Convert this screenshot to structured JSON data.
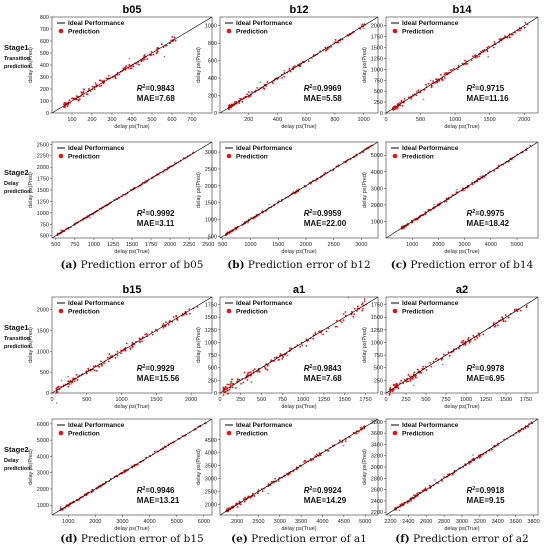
{
  "legend": {
    "ideal": "Ideal Performance",
    "prediction": "Prediction"
  },
  "colors": {
    "prediction": "#ee1111",
    "ideal": "#000000",
    "outlier": "#8888ee"
  },
  "rows": [
    {
      "label": "Stage1",
      "sub": [
        "Transition",
        "prediction"
      ]
    },
    {
      "label": "Stage2",
      "sub": [
        "Delay",
        "prediction"
      ]
    },
    {
      "label": "Stage1",
      "sub": [
        "Transition",
        "prediction"
      ]
    },
    {
      "label": "Stage2",
      "sub": [
        "Delay",
        "prediction"
      ]
    }
  ],
  "captions": [
    {
      "letter": "(a)",
      "text": " Prediction error of b05"
    },
    {
      "letter": "(b)",
      "text": " Prediction error of b12"
    },
    {
      "letter": "(c)",
      "text": " Prediction error of b14"
    },
    {
      "letter": "(d)",
      "text": " Prediction error of b15"
    },
    {
      "letter": "(e)",
      "text": " Prediction error of a1"
    },
    {
      "letter": "(f)",
      "text": " Prediction error of a2"
    }
  ],
  "chart_data": [
    {
      "type": "scatter",
      "title": "b05",
      "stage": "Stage1",
      "xlabel": "delay ps(True)",
      "ylabel": "delay ps(Pred)",
      "xlim": [
        0,
        800
      ],
      "ylim": [
        0,
        800
      ],
      "xticks": [
        100,
        200,
        300,
        400,
        500,
        600,
        700
      ],
      "yticks": [
        0,
        100,
        200,
        300,
        400,
        500,
        600,
        700,
        800
      ],
      "series": [
        {
          "name": "Prediction",
          "x_range": [
            60,
            620
          ],
          "spread": 30
        }
      ],
      "r2": "=0.9843",
      "mae": "MAE=7.68"
    },
    {
      "type": "scatter",
      "title": "b12",
      "stage": "Stage1",
      "xlabel": "delay ps(True)",
      "ylabel": "delay ps(Pred)",
      "xlim": [
        0,
        1100
      ],
      "ylim": [
        0,
        1100
      ],
      "xticks": [
        200,
        400,
        600,
        800,
        1000
      ],
      "yticks": [
        0,
        200,
        400,
        600,
        800,
        1000
      ],
      "series": [
        {
          "name": "Prediction",
          "x_range": [
            60,
            1050
          ],
          "spread": 28
        }
      ],
      "r2": "=0.9969",
      "mae": "MAE=5.58"
    },
    {
      "type": "scatter",
      "title": "b14",
      "stage": "Stage1",
      "xlabel": "delay ps(True)",
      "ylabel": "delay ps(Pred)",
      "xlim": [
        0,
        2200
      ],
      "ylim": [
        0,
        2200
      ],
      "xticks": [
        0,
        500,
        1000,
        1500,
        2000
      ],
      "yticks": [
        0,
        250,
        500,
        750,
        1000,
        1250,
        1500,
        1750,
        2000
      ],
      "series": [
        {
          "name": "Prediction",
          "x_range": [
            100,
            2050
          ],
          "spread": 70
        }
      ],
      "r2": "=0.9715",
      "mae": "MAE=11.16"
    },
    {
      "type": "scatter",
      "title": "",
      "stage": "Stage2",
      "xlabel": "delay ps(True)",
      "ylabel": "delay ps(Pred)",
      "xlim": [
        450,
        2550
      ],
      "ylim": [
        450,
        2550
      ],
      "xticks": [
        500,
        750,
        1000,
        1250,
        1500,
        1750,
        2000,
        2250,
        2500
      ],
      "yticks": [
        500,
        750,
        1000,
        1250,
        1500,
        1750,
        2000,
        2250,
        2500
      ],
      "series": [
        {
          "name": "Prediction",
          "x_range": [
            520,
            2320
          ],
          "spread": 18
        }
      ],
      "r2": "=0.9992",
      "mae": "MAE=3.11"
    },
    {
      "type": "scatter",
      "title": "",
      "stage": "Stage2",
      "xlabel": "delay ps(True)",
      "ylabel": "delay ps(Pred)",
      "xlim": [
        450,
        3300
      ],
      "ylim": [
        450,
        3300
      ],
      "xticks": [
        500,
        1000,
        1500,
        2000,
        2500,
        3000
      ],
      "yticks": [
        500,
        1000,
        1500,
        2000,
        2500,
        3000
      ],
      "series": [
        {
          "name": "Prediction",
          "x_range": [
            550,
            3250
          ],
          "spread": 35
        }
      ],
      "r2": "=0.9959",
      "mae": "MAE=22.00"
    },
    {
      "type": "scatter",
      "title": "",
      "stage": "Stage2",
      "xlabel": "delay ps(True)",
      "ylabel": "delay ps(Pred)",
      "xlim": [
        0,
        5800
      ],
      "ylim": [
        0,
        5800
      ],
      "xticks": [
        1000,
        2000,
        3000,
        4000,
        5000
      ],
      "yticks": [
        1000,
        2000,
        3000,
        4000,
        5000
      ],
      "series": [
        {
          "name": "Prediction",
          "x_range": [
            600,
            5600
          ],
          "spread": 80
        }
      ],
      "r2": "=0.9975",
      "mae": "MAE=18.42"
    },
    {
      "type": "scatter",
      "title": "b15",
      "stage": "Stage1",
      "xlabel": "delay ps(True)",
      "ylabel": "delay ps(Pred)",
      "xlim": [
        0,
        2300
      ],
      "ylim": [
        0,
        2300
      ],
      "xticks": [
        0,
        500,
        1000,
        1500,
        2000
      ],
      "yticks": [
        0,
        500,
        1000,
        1500,
        2000
      ],
      "series": [
        {
          "name": "Prediction",
          "x_range": [
            60,
            2100
          ],
          "spread": 90
        }
      ],
      "r2": "=0.9929",
      "mae": "MAE=15.56"
    },
    {
      "type": "scatter",
      "title": "a1",
      "stage": "Stage1",
      "xlabel": "delay ps(True)",
      "ylabel": "delay ps(Pred)",
      "xlim": [
        0,
        1900
      ],
      "ylim": [
        0,
        1900
      ],
      "xticks": [
        0,
        250,
        500,
        750,
        1000,
        1250,
        1500,
        1750
      ],
      "yticks": [
        0,
        250,
        500,
        750,
        1000,
        1250,
        1500,
        1750
      ],
      "series": [
        {
          "name": "Prediction",
          "x_range": [
            40,
            1780
          ],
          "spread": 95
        }
      ],
      "r2": "=0.9843",
      "mae": "MAE=7.68"
    },
    {
      "type": "scatter",
      "title": "a2",
      "stage": "Stage1",
      "xlabel": "delay ps(True)",
      "ylabel": "delay ps(Pred)",
      "xlim": [
        0,
        1900
      ],
      "ylim": [
        0,
        1900
      ],
      "xticks": [
        0,
        250,
        500,
        750,
        1000,
        1250,
        1500,
        1750
      ],
      "yticks": [
        0,
        250,
        500,
        750,
        1000,
        1250,
        1500,
        1750
      ],
      "series": [
        {
          "name": "Prediction",
          "x_range": [
            40,
            1790
          ],
          "spread": 70
        }
      ],
      "r2": "=0.9978",
      "mae": "MAE=6.95"
    },
    {
      "type": "scatter",
      "title": "",
      "stage": "Stage2",
      "xlabel": "delay ps(True)",
      "ylabel": "delay ps(Pred)",
      "xlim": [
        400,
        6300
      ],
      "ylim": [
        400,
        6300
      ],
      "xticks": [
        1000,
        2000,
        3000,
        4000,
        5000,
        6000
      ],
      "yticks": [
        1000,
        2000,
        3000,
        4000,
        5000,
        6000
      ],
      "series": [
        {
          "name": "Prediction",
          "x_range": [
            700,
            6150
          ],
          "spread": 70
        }
      ],
      "r2": "=0.9946",
      "mae": "MAE=13.21"
    },
    {
      "type": "scatter",
      "title": "",
      "stage": "Stage2",
      "xlabel": "delay ps(True)",
      "ylabel": "delay ps(Pred)",
      "xlim": [
        1600,
        5300
      ],
      "ylim": [
        1600,
        5300
      ],
      "xticks": [
        2000,
        2500,
        3000,
        3500,
        4000,
        4500,
        5000
      ],
      "yticks": [
        2000,
        2500,
        3000,
        3500,
        4000,
        4500
      ],
      "series": [
        {
          "name": "Prediction",
          "x_range": [
            1750,
            5000
          ],
          "spread": 80
        }
      ],
      "r2": "=0.9924",
      "mae": "MAE=14.29"
    },
    {
      "type": "scatter",
      "title": "",
      "stage": "Stage2",
      "xlabel": "delay ps(True)",
      "ylabel": "delay ps(Pred)",
      "xlim": [
        2150,
        3850
      ],
      "ylim": [
        2150,
        3850
      ],
      "xticks": [
        2200,
        2400,
        2600,
        2800,
        3000,
        3200,
        3400,
        3600,
        3800
      ],
      "yticks": [
        2200,
        2400,
        2600,
        2800,
        3000,
        3200,
        3400,
        3600,
        3800
      ],
      "series": [
        {
          "name": "Prediction",
          "x_range": [
            2250,
            3800
          ],
          "spread": 30
        }
      ],
      "r2": "=0.9918",
      "mae": "MAE=9.15"
    }
  ]
}
